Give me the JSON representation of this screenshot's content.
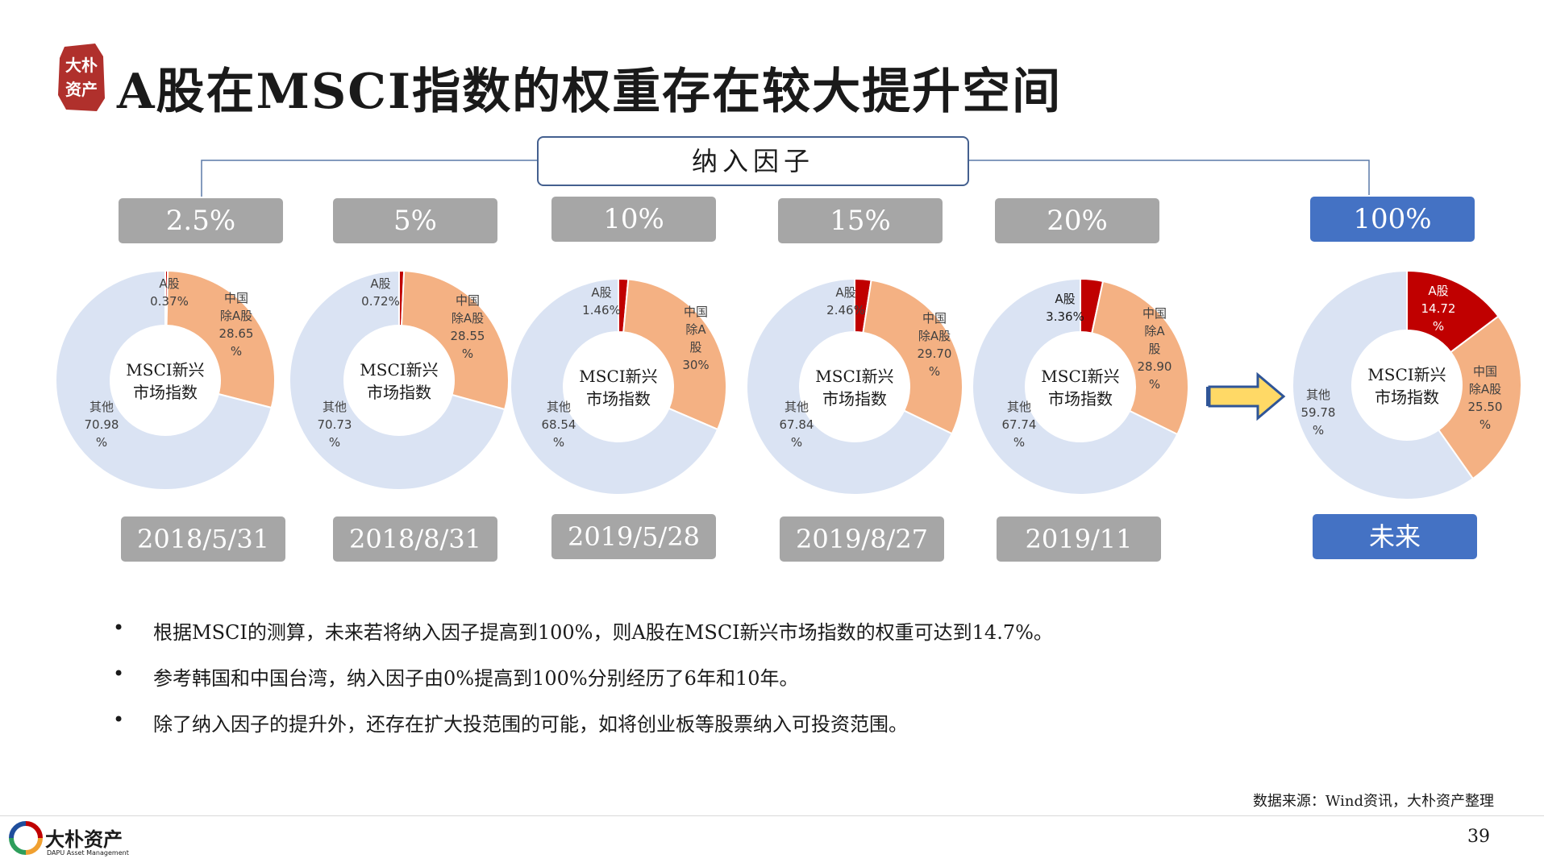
{
  "title": "A股在MSCI指数的权重存在较大提升空间",
  "seal_text": "大朴资产",
  "factor_header": "纳入因子",
  "center_label_line1": "MSCI新兴",
  "center_label_line2": "市场指数",
  "colors": {
    "a_share": "#c00000",
    "china_ex_a": "#f4b183",
    "other": "#dae3f3",
    "chip_grey": "#a6a6a6",
    "chip_blue": "#4472c4",
    "arrow_fill": "#ffd966",
    "arrow_stroke": "#2f5597"
  },
  "chart_data": [
    {
      "type": "pie",
      "variant": "donut",
      "inclusion_factor": "2.5%",
      "date": "2018/5/31",
      "slices": [
        {
          "name": "A股",
          "value": 0.37,
          "label_lines": [
            "A股",
            "0.37%"
          ]
        },
        {
          "name": "中国除A股",
          "value": 28.65,
          "label_lines": [
            "中国",
            "除A股",
            "28.65",
            "%"
          ]
        },
        {
          "name": "其他",
          "value": 70.98,
          "label_lines": [
            "其他",
            "70.98",
            "%"
          ]
        }
      ]
    },
    {
      "type": "pie",
      "variant": "donut",
      "inclusion_factor": "5%",
      "date": "2018/8/31",
      "slices": [
        {
          "name": "A股",
          "value": 0.72,
          "label_lines": [
            "A股",
            "0.72%"
          ]
        },
        {
          "name": "中国除A股",
          "value": 28.55,
          "label_lines": [
            "中国",
            "除A股",
            "28.55",
            "%"
          ]
        },
        {
          "name": "其他",
          "value": 70.73,
          "label_lines": [
            "其他",
            "70.73",
            "%"
          ]
        }
      ]
    },
    {
      "type": "pie",
      "variant": "donut",
      "inclusion_factor": "10%",
      "date": "2019/5/28",
      "slices": [
        {
          "name": "A股",
          "value": 1.46,
          "label_lines": [
            "A股",
            "1.46%"
          ]
        },
        {
          "name": "中国除A股",
          "value": 30,
          "label_lines": [
            "中国",
            "除A",
            "股",
            "30%"
          ]
        },
        {
          "name": "其他",
          "value": 68.54,
          "label_lines": [
            "其他",
            "68.54",
            "%"
          ]
        }
      ]
    },
    {
      "type": "pie",
      "variant": "donut",
      "inclusion_factor": "15%",
      "date": "2019/8/27",
      "slices": [
        {
          "name": "A股",
          "value": 2.46,
          "label_lines": [
            "A股",
            "2.46%"
          ]
        },
        {
          "name": "中国除A股",
          "value": 29.7,
          "label_lines": [
            "中国",
            "除A股",
            "29.70",
            "%"
          ]
        },
        {
          "name": "其他",
          "value": 67.84,
          "label_lines": [
            "其他",
            "67.84",
            "%"
          ]
        }
      ]
    },
    {
      "type": "pie",
      "variant": "donut",
      "inclusion_factor": "20%",
      "date": "2019/11",
      "slices": [
        {
          "name": "A股",
          "value": 3.36,
          "label_lines": [
            "A股",
            "3.36%"
          ]
        },
        {
          "name": "中国除A股",
          "value": 28.9,
          "label_lines": [
            "中国",
            "除A",
            "股",
            "28.90",
            "%"
          ]
        },
        {
          "name": "其他",
          "value": 67.74,
          "label_lines": [
            "其他",
            "67.74",
            "%"
          ]
        }
      ]
    },
    {
      "type": "pie",
      "variant": "donut",
      "inclusion_factor": "100%",
      "date": "未来",
      "slices": [
        {
          "name": "A股",
          "value": 14.72,
          "label_lines": [
            "A股",
            "14.72",
            "%"
          ]
        },
        {
          "name": "中国除A股",
          "value": 25.5,
          "label_lines": [
            "中国",
            "除A股",
            "25.50",
            "%"
          ]
        },
        {
          "name": "其他",
          "value": 59.78,
          "label_lines": [
            "其他",
            "59.78",
            "%"
          ]
        }
      ]
    }
  ],
  "bullets": [
    "根据MSCI的测算，未来若将纳入因子提高到100%，则A股在MSCI新兴市场指数的权重可达到14.7%。",
    "参考韩国和中国台湾，纳入因子由0%提高到100%分别经历了6年和10年。",
    "除了纳入因子的提升外，还存在扩大投范围的可能，如将创业板等股票纳入可投资范围。"
  ],
  "bullet_symbol": "•",
  "source": "数据来源：Wind资讯，大朴资产整理",
  "page_number": "39",
  "logo": {
    "name": "大朴资产",
    "subtitle": "DAPU Asset Management"
  }
}
